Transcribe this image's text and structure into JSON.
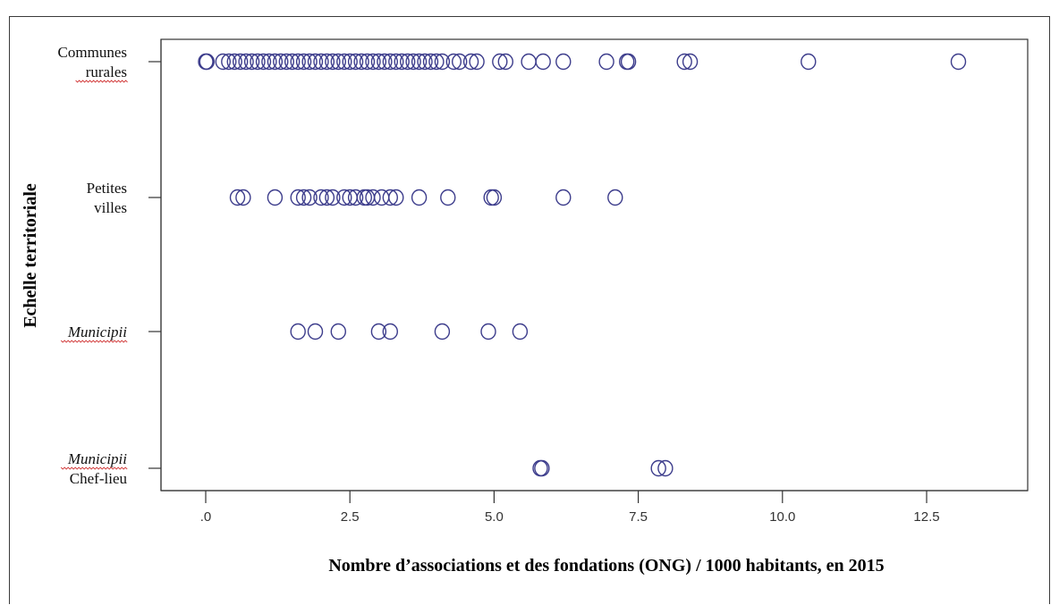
{
  "chart_data": {
    "type": "scatter",
    "title": "",
    "xlabel": "Nombre  d’associations  et des fondations  (ONG) / 1000 habitants,  en 2015",
    "ylabel": "Echelle territoriale",
    "xlim": [
      -0.8,
      14.5
    ],
    "x_ticks": [
      {
        "value": 0,
        "label": ".0"
      },
      {
        "value": 2.5,
        "label": "2.5"
      },
      {
        "value": 5.0,
        "label": "5.0"
      },
      {
        "value": 7.5,
        "label": "7.5"
      },
      {
        "value": 10.0,
        "label": "10.0"
      },
      {
        "value": 12.5,
        "label": "12.5"
      }
    ],
    "grid": false,
    "marker": "open-circle",
    "marker_color": "#3d3d8c",
    "categories": [
      {
        "lines": [
          "Communes",
          "rurales"
        ],
        "italic": [
          false,
          false
        ],
        "underline": [
          false,
          true
        ]
      },
      {
        "lines": [
          "Petites",
          "villes"
        ],
        "italic": [
          false,
          false
        ],
        "underline": [
          false,
          false
        ]
      },
      {
        "lines": [
          "Municipii"
        ],
        "italic": [
          true
        ],
        "underline": [
          true
        ]
      },
      {
        "lines": [
          "Municipii",
          "Chef-lieu"
        ],
        "italic": [
          true,
          false
        ],
        "underline": [
          true,
          false
        ]
      }
    ],
    "series": [
      {
        "category": "Communes rurales",
        "x": [
          0.0,
          0.02,
          0.3,
          0.4,
          0.5,
          0.6,
          0.7,
          0.8,
          0.9,
          1.0,
          1.1,
          1.2,
          1.3,
          1.4,
          1.5,
          1.6,
          1.7,
          1.8,
          1.9,
          2.0,
          2.1,
          2.2,
          2.3,
          2.4,
          2.5,
          2.6,
          2.7,
          2.8,
          2.9,
          3.0,
          3.1,
          3.2,
          3.3,
          3.4,
          3.5,
          3.6,
          3.7,
          3.8,
          3.9,
          4.0,
          4.1,
          4.3,
          4.4,
          4.6,
          4.7,
          5.1,
          5.2,
          5.6,
          5.85,
          6.2,
          6.95,
          7.3,
          7.33,
          8.3,
          8.4,
          10.45,
          13.05
        ]
      },
      {
        "category": "Petites villes",
        "x": [
          0.55,
          0.65,
          1.2,
          1.6,
          1.7,
          1.8,
          2.0,
          2.1,
          2.2,
          2.4,
          2.5,
          2.6,
          2.75,
          2.8,
          2.9,
          3.05,
          3.2,
          3.3,
          3.7,
          4.2,
          4.95,
          5.0,
          6.2,
          7.1
        ]
      },
      {
        "category": "Municipii",
        "x": [
          1.6,
          1.9,
          2.3,
          3.0,
          3.2,
          4.1,
          4.9,
          5.45
        ]
      },
      {
        "category": "Municipii Chef-lieu",
        "x": [
          5.8,
          5.83,
          7.85,
          7.97
        ]
      }
    ]
  }
}
